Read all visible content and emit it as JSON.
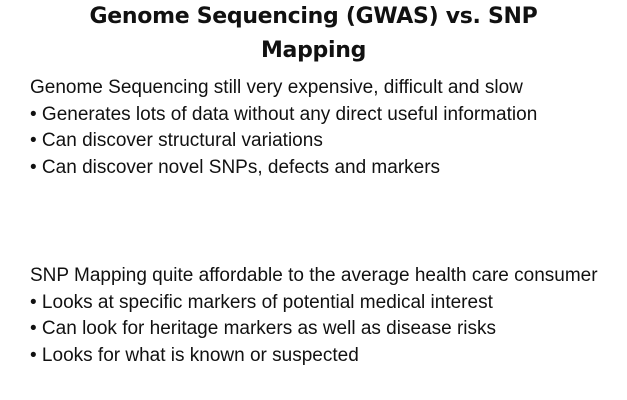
{
  "slide": {
    "title_line1": "Genome Sequencing (GWAS) vs. SNP",
    "title_line2": "Mapping",
    "sections": [
      {
        "heading": "Genome Sequencing still very expensive, difficult and slow",
        "bullets": [
          "• Generates lots of data without any direct useful information",
          "• Can discover structural variations",
          "• Can discover novel SNPs, defects and markers"
        ]
      },
      {
        "heading": "SNP Mapping quite affordable to the average health care consumer",
        "bullets": [
          "• Looks at specific markers of potential medical interest",
          "• Can look for heritage markers as well as disease risks",
          "• Looks for what is known or suspected"
        ]
      }
    ]
  }
}
